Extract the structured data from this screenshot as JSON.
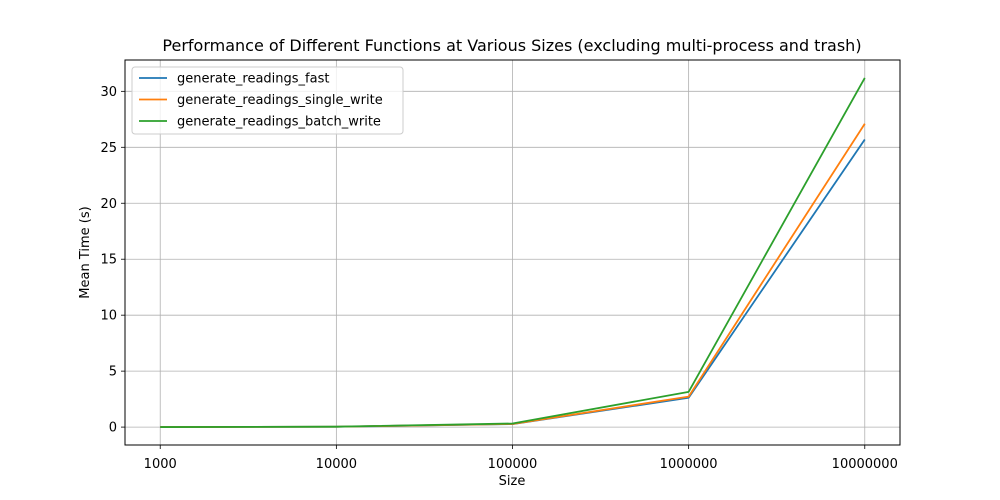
{
  "chart_data": {
    "type": "line",
    "title": "Performance of Different Functions at Various Sizes (excluding multi-process and trash)",
    "xlabel": "Size",
    "ylabel": "Mean Time (s)",
    "categories": [
      "1000",
      "10000",
      "100000",
      "1000000",
      "10000000"
    ],
    "ylim": [
      -1.6,
      32.8
    ],
    "yticks": [
      "0",
      "5",
      "10",
      "15",
      "20",
      "25",
      "30"
    ],
    "grid": true,
    "legend_position": "top-left",
    "series": [
      {
        "name": "generate_readings_fast",
        "color": "#1f77b4",
        "values": [
          0.003,
          0.03,
          0.27,
          2.62,
          25.7
        ]
      },
      {
        "name": "generate_readings_single_write",
        "color": "#ff7f0e",
        "values": [
          0.003,
          0.03,
          0.28,
          2.72,
          27.1
        ]
      },
      {
        "name": "generate_readings_batch_write",
        "color": "#2ca02c",
        "values": [
          0.003,
          0.035,
          0.32,
          3.15,
          31.2
        ]
      }
    ]
  }
}
